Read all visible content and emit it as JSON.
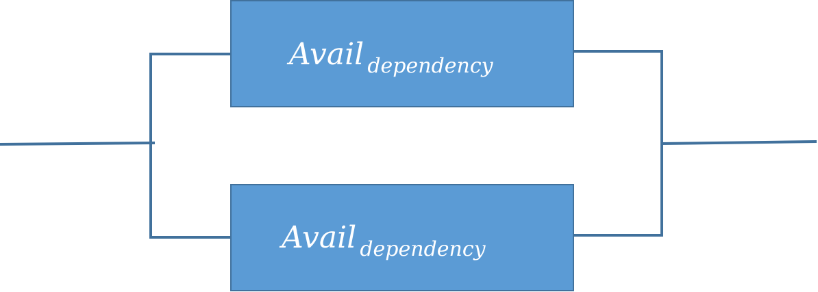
{
  "diagram": {
    "type": "parallel reliability block diagram",
    "blocks": [
      {
        "label_main": "Avail",
        "label_sub": "dependency"
      },
      {
        "label_main": "Avail",
        "label_sub": "dependency"
      }
    ],
    "colors": {
      "block_fill": "#5b9bd5",
      "line": "#41719c",
      "text": "#ffffff"
    }
  }
}
